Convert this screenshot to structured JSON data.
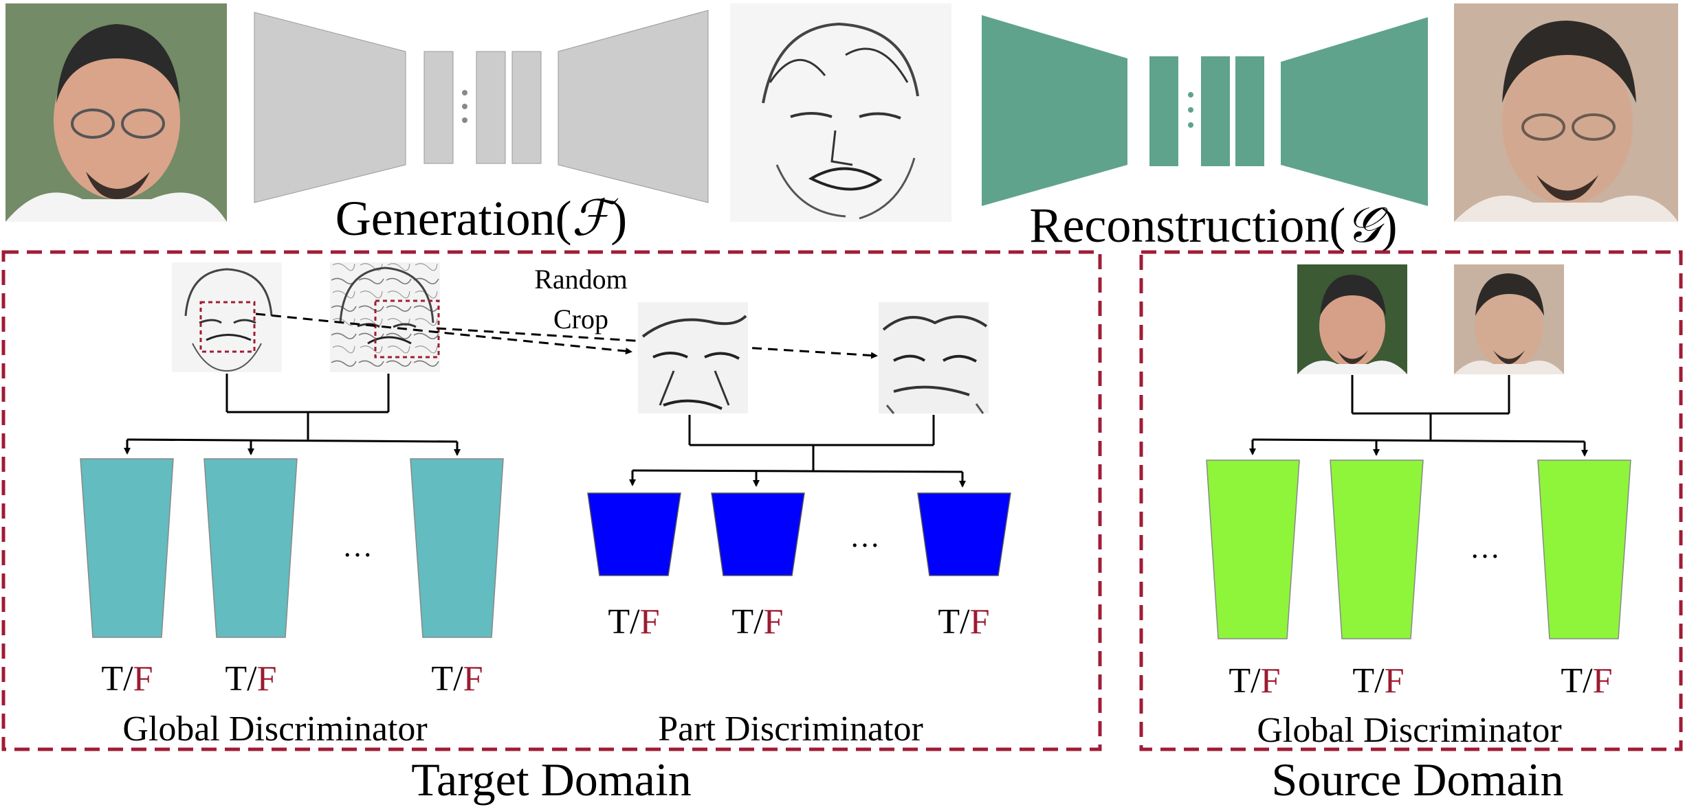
{
  "top": {
    "generation_label": "Generation(",
    "generation_symbol": "ℱ",
    "generation_close": ")",
    "reconstruction_label": "Reconstruction(",
    "reconstruction_symbol": "𝒢",
    "reconstruction_close": ")"
  },
  "random_crop": {
    "line1": "Random",
    "line2": "Crop"
  },
  "tf": {
    "t": "T/",
    "f": "F"
  },
  "ellipsis": "…",
  "target": {
    "global_label": "Global Discriminator",
    "part_label": "Part Discriminator",
    "domain_label": "Target Domain"
  },
  "source": {
    "global_label": "Global Discriminator",
    "domain_label": "Source Domain"
  },
  "colors": {
    "generator": "#cccccc",
    "reconstructor": "#5fa38d",
    "global_disc_target": "#63bcbf",
    "part_disc": "#0000ff",
    "global_disc_source": "#8ef53a",
    "dashed_box": "#a01c35",
    "false_red": "#9b1b30"
  },
  "icons": [
    "photo-face",
    "sketch-face",
    "reconstructed-face",
    "sketch-crop"
  ]
}
